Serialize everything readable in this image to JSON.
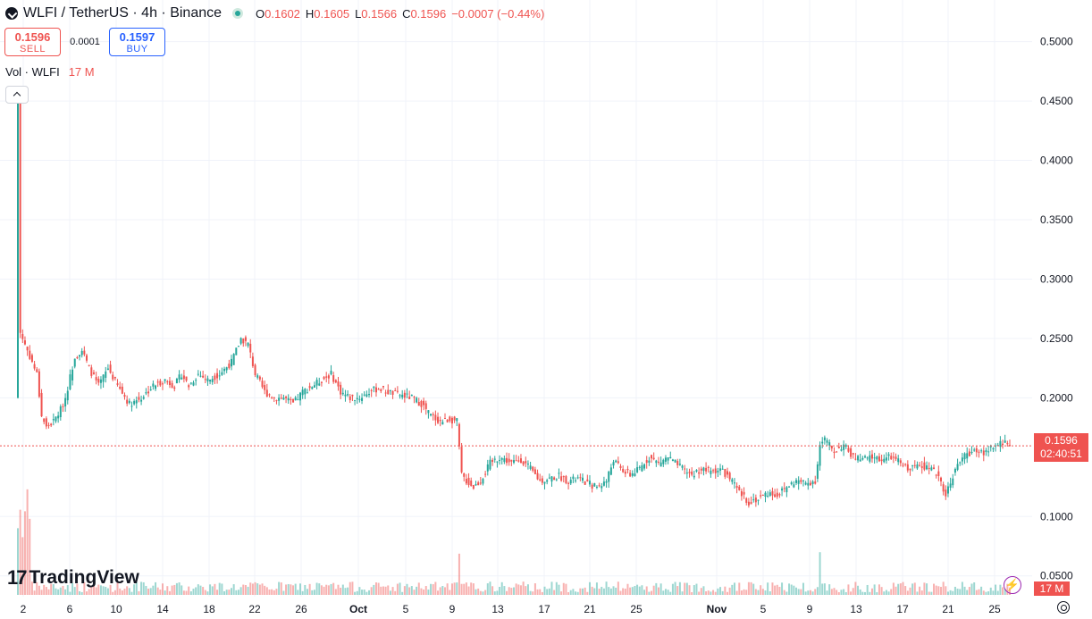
{
  "header": {
    "symbol": "WLFI / TetherUS · 4h · Binance",
    "ohlc": {
      "o_label": "O",
      "o": "0.1602",
      "h_label": "H",
      "h": "0.1605",
      "l_label": "L",
      "l": "0.1566",
      "c_label": "C",
      "c": "0.1596",
      "change": "−0.0007 (−0.44%)"
    }
  },
  "trade": {
    "sell_price": "0.1596",
    "sell_label": "SELL",
    "spread": "0.0001",
    "buy_price": "0.1597",
    "buy_label": "BUY"
  },
  "volume_legend": {
    "label": "Vol · WLFI",
    "value": "17 M"
  },
  "brand": {
    "name": "TradingView",
    "mark": "17"
  },
  "price_tag": {
    "price": "0.1596",
    "countdown": "02:40:51"
  },
  "volume_tag": "17 M",
  "colors": {
    "up": "#26a69a",
    "down": "#ef5350",
    "grid": "#f0f3fa",
    "text": "#131722",
    "price_line": "#ef5350"
  },
  "icons": [
    "symbol-icon",
    "status-dot-icon",
    "chevron-up-icon",
    "bolt-icon",
    "gear-icon"
  ],
  "chart_data": {
    "type": "candlestick",
    "interval": "4h",
    "y_ticks": [
      "0.5000",
      "0.4500",
      "0.4000",
      "0.3500",
      "0.3000",
      "0.2500",
      "0.2000",
      "0.1000",
      "0.0500"
    ],
    "ylim": [
      0.0325,
      0.5125
    ],
    "x_ticks": [
      "2",
      "6",
      "10",
      "14",
      "18",
      "22",
      "26",
      "Oct",
      "5",
      "9",
      "13",
      "17",
      "21",
      "25",
      "Nov",
      "5",
      "9",
      "13",
      "17",
      "21",
      "25"
    ],
    "x_bold": [
      "Oct",
      "Nov"
    ],
    "last_price": 0.1596,
    "grid": true,
    "anchors": [
      [
        0,
        0.46
      ],
      [
        1,
        0.255
      ],
      [
        4,
        0.24
      ],
      [
        8,
        0.22
      ],
      [
        10,
        0.185
      ],
      [
        12,
        0.175
      ],
      [
        15,
        0.18
      ],
      [
        18,
        0.19
      ],
      [
        20,
        0.2
      ],
      [
        24,
        0.235
      ],
      [
        27,
        0.24
      ],
      [
        30,
        0.225
      ],
      [
        34,
        0.21
      ],
      [
        38,
        0.225
      ],
      [
        42,
        0.21
      ],
      [
        47,
        0.195
      ],
      [
        52,
        0.2
      ],
      [
        57,
        0.21
      ],
      [
        62,
        0.215
      ],
      [
        66,
        0.21
      ],
      [
        69,
        0.22
      ],
      [
        72,
        0.21
      ],
      [
        76,
        0.22
      ],
      [
        80,
        0.215
      ],
      [
        85,
        0.22
      ],
      [
        90,
        0.23
      ],
      [
        94,
        0.25
      ],
      [
        97,
        0.245
      ],
      [
        100,
        0.22
      ],
      [
        104,
        0.205
      ],
      [
        108,
        0.2
      ],
      [
        112,
        0.2
      ],
      [
        116,
        0.195
      ],
      [
        120,
        0.205
      ],
      [
        124,
        0.21
      ],
      [
        128,
        0.215
      ],
      [
        132,
        0.22
      ],
      [
        136,
        0.205
      ],
      [
        140,
        0.2
      ],
      [
        144,
        0.2
      ],
      [
        148,
        0.205
      ],
      [
        152,
        0.208
      ],
      [
        156,
        0.205
      ],
      [
        160,
        0.203
      ],
      [
        166,
        0.2
      ],
      [
        170,
        0.195
      ],
      [
        174,
        0.185
      ],
      [
        178,
        0.18
      ],
      [
        182,
        0.182
      ],
      [
        185,
        0.18
      ],
      [
        187,
        0.135
      ],
      [
        189,
        0.13
      ],
      [
        192,
        0.125
      ],
      [
        195,
        0.13
      ],
      [
        199,
        0.145
      ],
      [
        203,
        0.15
      ],
      [
        208,
        0.145
      ],
      [
        212,
        0.148
      ],
      [
        216,
        0.14
      ],
      [
        220,
        0.13
      ],
      [
        224,
        0.132
      ],
      [
        228,
        0.134
      ],
      [
        232,
        0.13
      ],
      [
        236,
        0.132
      ],
      [
        240,
        0.128
      ],
      [
        244,
        0.125
      ],
      [
        248,
        0.13
      ],
      [
        251,
        0.148
      ],
      [
        254,
        0.14
      ],
      [
        258,
        0.135
      ],
      [
        262,
        0.14
      ],
      [
        266,
        0.15
      ],
      [
        270,
        0.145
      ],
      [
        274,
        0.15
      ],
      [
        277,
        0.145
      ],
      [
        280,
        0.14
      ],
      [
        284,
        0.135
      ],
      [
        288,
        0.14
      ],
      [
        292,
        0.138
      ],
      [
        296,
        0.14
      ],
      [
        300,
        0.132
      ],
      [
        304,
        0.12
      ],
      [
        308,
        0.112
      ],
      [
        312,
        0.115
      ],
      [
        316,
        0.12
      ],
      [
        320,
        0.118
      ],
      [
        324,
        0.125
      ],
      [
        328,
        0.13
      ],
      [
        332,
        0.128
      ],
      [
        336,
        0.13
      ],
      [
        338,
        0.16
      ],
      [
        340,
        0.165
      ],
      [
        344,
        0.155
      ],
      [
        348,
        0.16
      ],
      [
        352,
        0.15
      ],
      [
        356,
        0.148
      ],
      [
        360,
        0.15
      ],
      [
        364,
        0.148
      ],
      [
        368,
        0.15
      ],
      [
        372,
        0.145
      ],
      [
        376,
        0.14
      ],
      [
        380,
        0.145
      ],
      [
        384,
        0.14
      ],
      [
        388,
        0.135
      ],
      [
        391,
        0.118
      ],
      [
        394,
        0.135
      ],
      [
        398,
        0.15
      ],
      [
        402,
        0.155
      ],
      [
        406,
        0.153
      ],
      [
        410,
        0.158
      ],
      [
        413,
        0.16
      ],
      [
        416,
        0.163
      ],
      [
        418,
        0.1596
      ]
    ]
  }
}
